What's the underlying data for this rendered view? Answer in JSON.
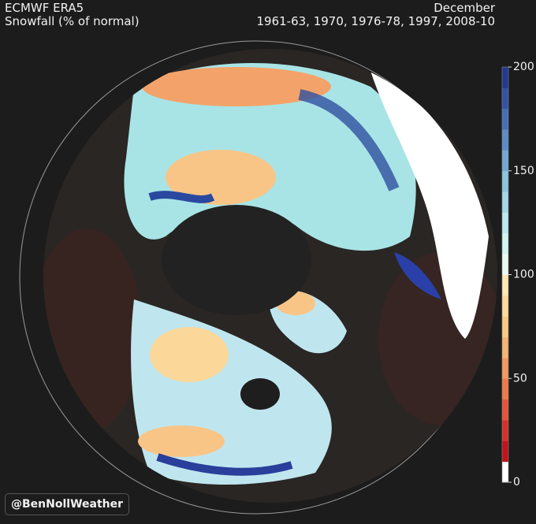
{
  "header": {
    "left": [
      "ECMWF ERA5",
      "Snowfall (% of normal)"
    ],
    "right": [
      "December",
      "1961-63, 1970, 1976-78, 1997, 2008-10"
    ]
  },
  "colorbar": {
    "range": [
      0,
      200
    ],
    "ticks": [
      0,
      50,
      100,
      150,
      200
    ],
    "colors": [
      "#ffffff",
      "#c0141c",
      "#d6302a",
      "#e4553a",
      "#ee7a4a",
      "#f39a5c",
      "#f7b46e",
      "#fac982",
      "#fcdb98",
      "#fde9b2",
      "#eafaf2",
      "#d4f3f3",
      "#bde8f0",
      "#a4d8ea",
      "#8cc4e0",
      "#74a8d4",
      "#5c8cc6",
      "#4670b6",
      "#3452a4",
      "#233890"
    ]
  },
  "credit": "@BenNollWeather"
}
